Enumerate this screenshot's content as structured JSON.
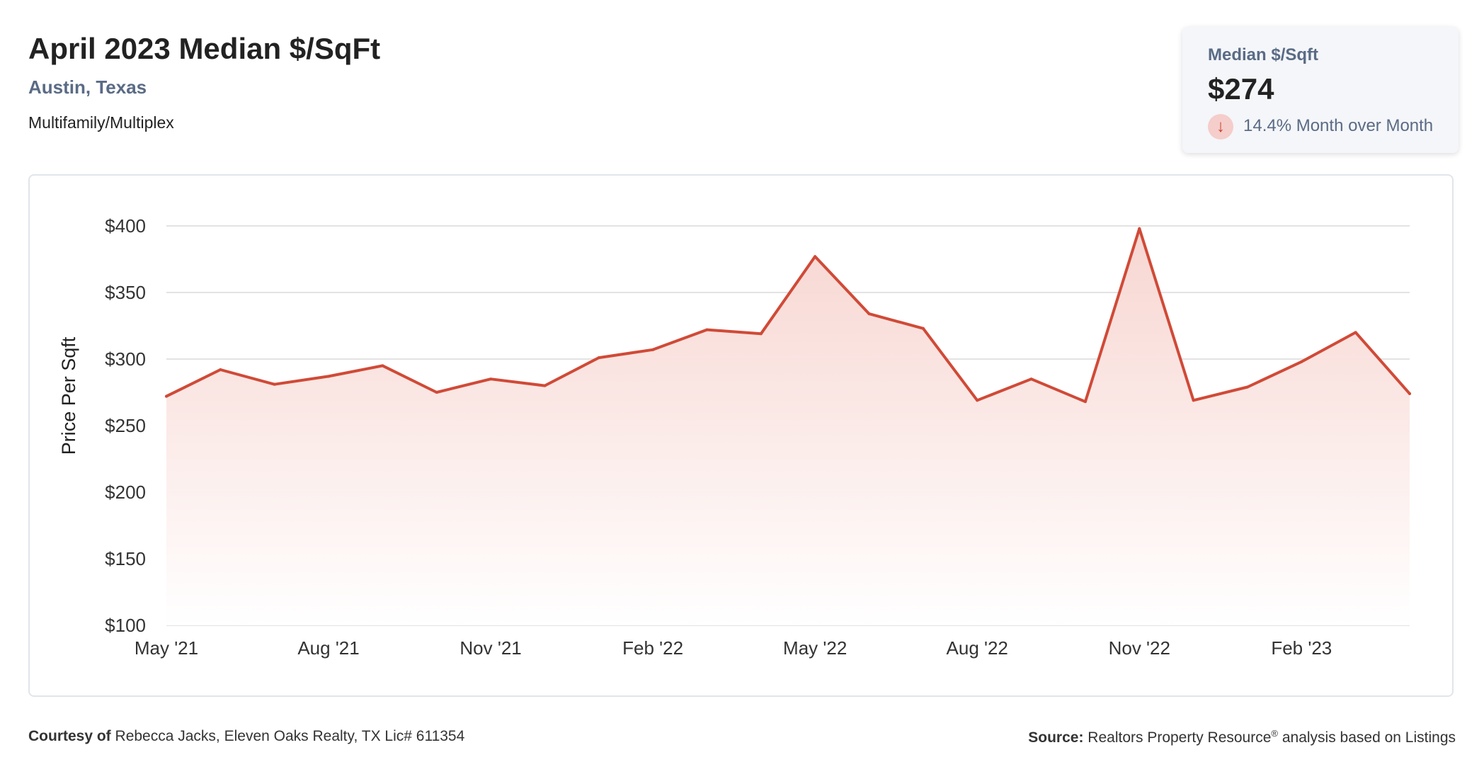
{
  "header": {
    "title": "April 2023 Median $/SqFt",
    "location": "Austin, Texas",
    "property_type": "Multifamily/Multiplex"
  },
  "stat_card": {
    "label": "Median $/Sqft",
    "value": "$274",
    "change_text": "14.4% Month over Month",
    "change_direction": "down",
    "change_icon": "arrow-down-icon"
  },
  "colors": {
    "line": "#d04a37",
    "fill_top": "#f7d4cf",
    "grid": "#e3e3e3",
    "muted_text": "#5a6b85",
    "change_badge": "#f5cdca"
  },
  "chart_data": {
    "type": "area",
    "ylabel": "Price Per Sqft",
    "xlabel": "",
    "ylim": [
      100,
      400
    ],
    "yticks": [
      {
        "value": 100,
        "label": "$100"
      },
      {
        "value": 150,
        "label": "$150"
      },
      {
        "value": 200,
        "label": "$200"
      },
      {
        "value": 250,
        "label": "$250"
      },
      {
        "value": 300,
        "label": "$300"
      },
      {
        "value": 350,
        "label": "$350"
      },
      {
        "value": 400,
        "label": "$400"
      }
    ],
    "xticks": [
      {
        "index": 0,
        "label": "May '21"
      },
      {
        "index": 3,
        "label": "Aug '21"
      },
      {
        "index": 6,
        "label": "Nov '21"
      },
      {
        "index": 9,
        "label": "Feb '22"
      },
      {
        "index": 12,
        "label": "May '22"
      },
      {
        "index": 15,
        "label": "Aug '22"
      },
      {
        "index": 18,
        "label": "Nov '22"
      },
      {
        "index": 21,
        "label": "Feb '23"
      }
    ],
    "grid": true,
    "series": [
      {
        "values": [
          272,
          292,
          281,
          287,
          295,
          275,
          285,
          280,
          301,
          307,
          322,
          319,
          377,
          334,
          323,
          269,
          285,
          268,
          398,
          269,
          279,
          298,
          320,
          274
        ]
      }
    ]
  },
  "footer": {
    "courtesy_label": "Courtesy of",
    "courtesy_text": "Rebecca Jacks, Eleven Oaks Realty, TX Lic# 611354",
    "source_label": "Source:",
    "source_text": "Realtors Property Resource",
    "source_mark": "®",
    "source_suffix": "analysis based on Listings"
  }
}
